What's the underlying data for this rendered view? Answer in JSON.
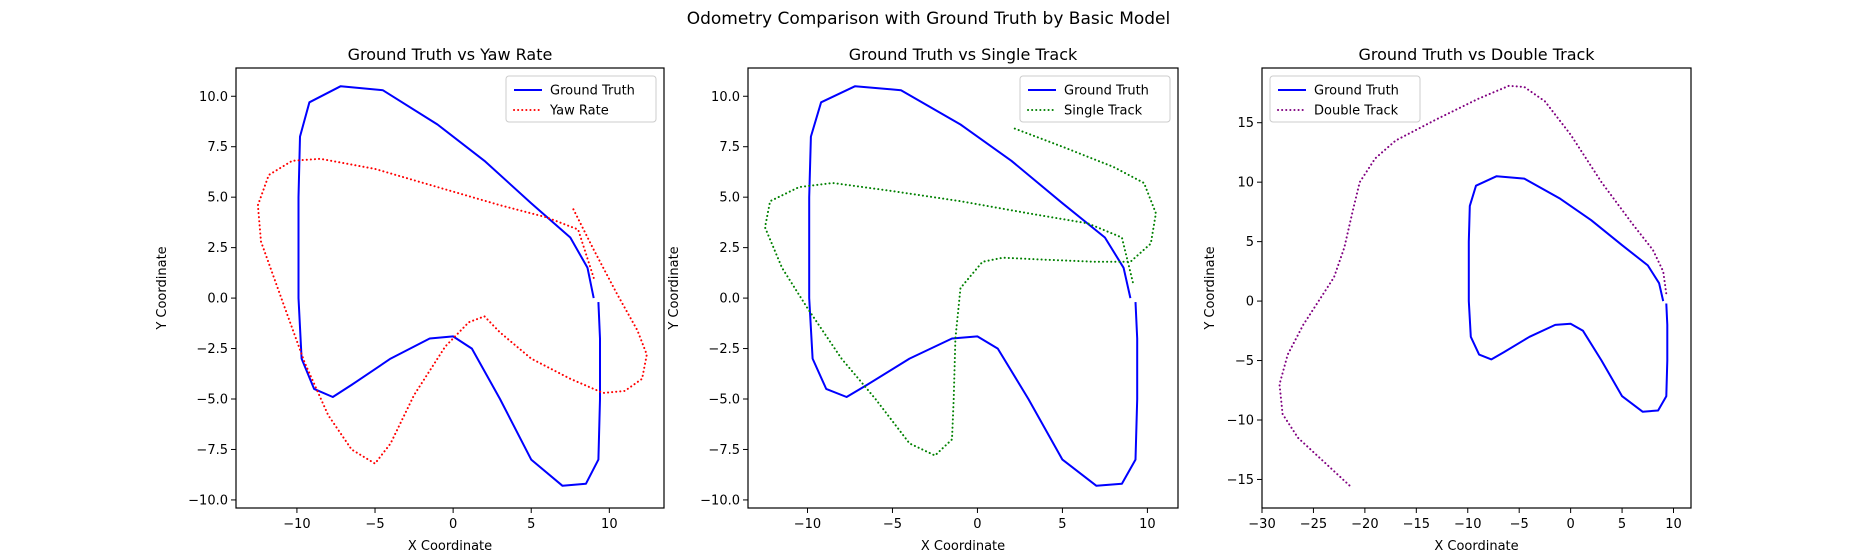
{
  "figure": {
    "suptitle": "Odometry Comparison with Ground Truth by Basic Model"
  },
  "chart_data": [
    {
      "type": "line",
      "title": "Ground Truth vs Yaw Rate",
      "xlabel": "X Coordinate",
      "ylabel": "Y Coordinate",
      "xlim": [
        -13.9,
        13.5
      ],
      "ylim": [
        -10.4,
        11.4
      ],
      "xticks": [
        -10,
        -5,
        0,
        5,
        10
      ],
      "yticks": [
        -10.0,
        -7.5,
        -5.0,
        -2.5,
        0.0,
        2.5,
        5.0,
        7.5,
        10.0
      ],
      "ytick_labels": [
        "−10.0",
        "−7.5",
        "−5.0",
        "−2.5",
        "0.0",
        "2.5",
        "5.0",
        "7.5",
        "10.0"
      ],
      "xtick_labels": [
        "−10",
        "−5",
        "0",
        "5",
        "10"
      ],
      "grid": false,
      "legend_position": "upper right",
      "series": [
        {
          "name": "Ground Truth",
          "color": "#0000ff",
          "style": "solid",
          "points": [
            [
              9.0,
              0.0
            ],
            [
              8.6,
              1.5
            ],
            [
              7.5,
              3.0
            ],
            [
              5.0,
              4.7
            ],
            [
              2.0,
              6.8
            ],
            [
              -1.0,
              8.6
            ],
            [
              -4.5,
              10.3
            ],
            [
              -7.2,
              10.5
            ],
            [
              -9.2,
              9.7
            ],
            [
              -9.8,
              8.0
            ],
            [
              -9.9,
              5.0
            ],
            [
              -9.9,
              0.0
            ],
            [
              -9.7,
              -3.0
            ],
            [
              -8.9,
              -4.5
            ],
            [
              -7.7,
              -4.9
            ],
            [
              -6.5,
              -4.3
            ],
            [
              -4.0,
              -3.0
            ],
            [
              -1.5,
              -2.0
            ],
            [
              0.0,
              -1.9
            ],
            [
              1.2,
              -2.5
            ],
            [
              3.0,
              -5.0
            ],
            [
              5.0,
              -8.0
            ],
            [
              7.0,
              -9.3
            ],
            [
              8.5,
              -9.2
            ],
            [
              9.3,
              -8.0
            ],
            [
              9.4,
              -5.0
            ],
            [
              9.4,
              -2.0
            ],
            [
              9.3,
              -0.2
            ]
          ]
        },
        {
          "name": "Yaw Rate",
          "color": "#ff0000",
          "style": "dotted",
          "points": [
            [
              7.7,
              4.4
            ],
            [
              9.0,
              2.4
            ],
            [
              10.5,
              0.2
            ],
            [
              11.8,
              -1.6
            ],
            [
              12.4,
              -2.8
            ],
            [
              12.1,
              -4.0
            ],
            [
              11.0,
              -4.6
            ],
            [
              9.6,
              -4.7
            ],
            [
              7.5,
              -4.0
            ],
            [
              5.0,
              -3.0
            ],
            [
              3.0,
              -1.7
            ],
            [
              2.0,
              -0.9
            ],
            [
              1.0,
              -1.2
            ],
            [
              -0.5,
              -2.4
            ],
            [
              -2.5,
              -4.8
            ],
            [
              -4.0,
              -7.2
            ],
            [
              -5.0,
              -8.2
            ],
            [
              -6.5,
              -7.5
            ],
            [
              -8.0,
              -5.8
            ],
            [
              -9.5,
              -3.2
            ],
            [
              -11.0,
              0.0
            ],
            [
              -12.3,
              2.8
            ],
            [
              -12.5,
              4.6
            ],
            [
              -11.8,
              6.1
            ],
            [
              -10.3,
              6.8
            ],
            [
              -8.5,
              6.9
            ],
            [
              -5.0,
              6.4
            ],
            [
              -1.0,
              5.5
            ],
            [
              3.0,
              4.6
            ],
            [
              6.0,
              4.0
            ],
            [
              8.0,
              3.4
            ],
            [
              9.0,
              1.0
            ]
          ]
        }
      ]
    },
    {
      "type": "line",
      "title": "Ground Truth vs Single Track",
      "xlabel": "X Coordinate",
      "ylabel": "Y Coordinate",
      "xlim": [
        -13.5,
        11.8
      ],
      "ylim": [
        -10.4,
        11.4
      ],
      "xticks": [
        -10,
        -5,
        0,
        5,
        10
      ],
      "yticks": [
        -10.0,
        -7.5,
        -5.0,
        -2.5,
        0.0,
        2.5,
        5.0,
        7.5,
        10.0
      ],
      "ytick_labels": [
        "−10.0",
        "−7.5",
        "−5.0",
        "−2.5",
        "0.0",
        "2.5",
        "5.0",
        "7.5",
        "10.0"
      ],
      "xtick_labels": [
        "−10",
        "−5",
        "0",
        "5",
        "10"
      ],
      "grid": false,
      "legend_position": "upper right",
      "series": [
        {
          "name": "Ground Truth",
          "color": "#0000ff",
          "style": "solid",
          "points": [
            [
              9.0,
              0.0
            ],
            [
              8.6,
              1.5
            ],
            [
              7.5,
              3.0
            ],
            [
              5.0,
              4.7
            ],
            [
              2.0,
              6.8
            ],
            [
              -1.0,
              8.6
            ],
            [
              -4.5,
              10.3
            ],
            [
              -7.2,
              10.5
            ],
            [
              -9.2,
              9.7
            ],
            [
              -9.8,
              8.0
            ],
            [
              -9.9,
              5.0
            ],
            [
              -9.9,
              0.0
            ],
            [
              -9.7,
              -3.0
            ],
            [
              -8.9,
              -4.5
            ],
            [
              -7.7,
              -4.9
            ],
            [
              -6.5,
              -4.3
            ],
            [
              -4.0,
              -3.0
            ],
            [
              -1.5,
              -2.0
            ],
            [
              0.0,
              -1.9
            ],
            [
              1.2,
              -2.5
            ],
            [
              3.0,
              -5.0
            ],
            [
              5.0,
              -8.0
            ],
            [
              7.0,
              -9.3
            ],
            [
              8.5,
              -9.2
            ],
            [
              9.3,
              -8.0
            ],
            [
              9.4,
              -5.0
            ],
            [
              9.4,
              -2.0
            ],
            [
              9.3,
              -0.2
            ]
          ]
        },
        {
          "name": "Single Track",
          "color": "#008000",
          "style": "dotted",
          "points": [
            [
              2.2,
              8.4
            ],
            [
              5.0,
              7.5
            ],
            [
              8.0,
              6.5
            ],
            [
              9.8,
              5.7
            ],
            [
              10.5,
              4.2
            ],
            [
              10.2,
              2.7
            ],
            [
              9.0,
              1.8
            ],
            [
              7.0,
              1.8
            ],
            [
              4.0,
              1.9
            ],
            [
              1.5,
              2.0
            ],
            [
              0.3,
              1.8
            ],
            [
              -1.0,
              0.5
            ],
            [
              -1.3,
              -2.0
            ],
            [
              -1.4,
              -5.0
            ],
            [
              -1.5,
              -7.0
            ],
            [
              -2.5,
              -7.8
            ],
            [
              -4.0,
              -7.2
            ],
            [
              -6.0,
              -5.0
            ],
            [
              -8.0,
              -3.0
            ],
            [
              -10.0,
              -0.5
            ],
            [
              -11.5,
              1.5
            ],
            [
              -12.5,
              3.5
            ],
            [
              -12.2,
              4.8
            ],
            [
              -10.5,
              5.5
            ],
            [
              -8.5,
              5.7
            ],
            [
              -5.0,
              5.3
            ],
            [
              -1.0,
              4.8
            ],
            [
              3.0,
              4.2
            ],
            [
              6.5,
              3.7
            ],
            [
              8.5,
              3.0
            ],
            [
              9.2,
              0.6
            ]
          ]
        }
      ]
    },
    {
      "type": "line",
      "title": "Ground Truth vs Double Track",
      "xlabel": "X Coordinate",
      "ylabel": "Y Coordinate",
      "xlim": [
        -30.0,
        11.7
      ],
      "ylim": [
        -17.4,
        19.6
      ],
      "xticks": [
        -30,
        -25,
        -20,
        -15,
        -10,
        -5,
        0,
        5,
        10
      ],
      "yticks": [
        -15,
        -10,
        -5,
        0,
        5,
        10,
        15
      ],
      "ytick_labels": [
        "−15",
        "−10",
        "−5",
        "0",
        "5",
        "10",
        "15"
      ],
      "xtick_labels": [
        "−30",
        "−25",
        "−20",
        "−15",
        "−10",
        "−5",
        "0",
        "5",
        "10"
      ],
      "grid": false,
      "legend_position": "upper left",
      "series": [
        {
          "name": "Ground Truth",
          "color": "#0000ff",
          "style": "solid",
          "points": [
            [
              9.0,
              0.0
            ],
            [
              8.6,
              1.5
            ],
            [
              7.5,
              3.0
            ],
            [
              5.0,
              4.7
            ],
            [
              2.0,
              6.8
            ],
            [
              -1.0,
              8.6
            ],
            [
              -4.5,
              10.3
            ],
            [
              -7.2,
              10.5
            ],
            [
              -9.2,
              9.7
            ],
            [
              -9.8,
              8.0
            ],
            [
              -9.9,
              5.0
            ],
            [
              -9.9,
              0.0
            ],
            [
              -9.7,
              -3.0
            ],
            [
              -8.9,
              -4.5
            ],
            [
              -7.7,
              -4.9
            ],
            [
              -6.5,
              -4.3
            ],
            [
              -4.0,
              -3.0
            ],
            [
              -1.5,
              -2.0
            ],
            [
              0.0,
              -1.9
            ],
            [
              1.2,
              -2.5
            ],
            [
              3.0,
              -5.0
            ],
            [
              5.0,
              -8.0
            ],
            [
              7.0,
              -9.3
            ],
            [
              8.5,
              -9.2
            ],
            [
              9.3,
              -8.0
            ],
            [
              9.4,
              -5.0
            ],
            [
              9.4,
              -2.0
            ],
            [
              9.3,
              -0.2
            ]
          ]
        },
        {
          "name": "Double Track",
          "color": "#800080",
          "style": "dotted",
          "points": [
            [
              -21.5,
              -15.5
            ],
            [
              -24.0,
              -13.5
            ],
            [
              -26.5,
              -11.5
            ],
            [
              -28.0,
              -9.5
            ],
            [
              -28.3,
              -7.0
            ],
            [
              -27.5,
              -4.5
            ],
            [
              -26.0,
              -2.0
            ],
            [
              -24.5,
              0.0
            ],
            [
              -23.0,
              2.0
            ],
            [
              -22.0,
              4.5
            ],
            [
              -21.2,
              7.5
            ],
            [
              -20.5,
              10.0
            ],
            [
              -19.0,
              12.0
            ],
            [
              -17.0,
              13.5
            ],
            [
              -13.0,
              15.3
            ],
            [
              -9.0,
              17.0
            ],
            [
              -6.0,
              18.1
            ],
            [
              -4.5,
              18.0
            ],
            [
              -2.5,
              16.8
            ],
            [
              0.0,
              14.0
            ],
            [
              3.0,
              10.0
            ],
            [
              6.0,
              6.5
            ],
            [
              8.0,
              4.3
            ],
            [
              9.0,
              2.5
            ],
            [
              9.3,
              0.6
            ]
          ]
        }
      ]
    }
  ],
  "panels_layout_note": ""
}
